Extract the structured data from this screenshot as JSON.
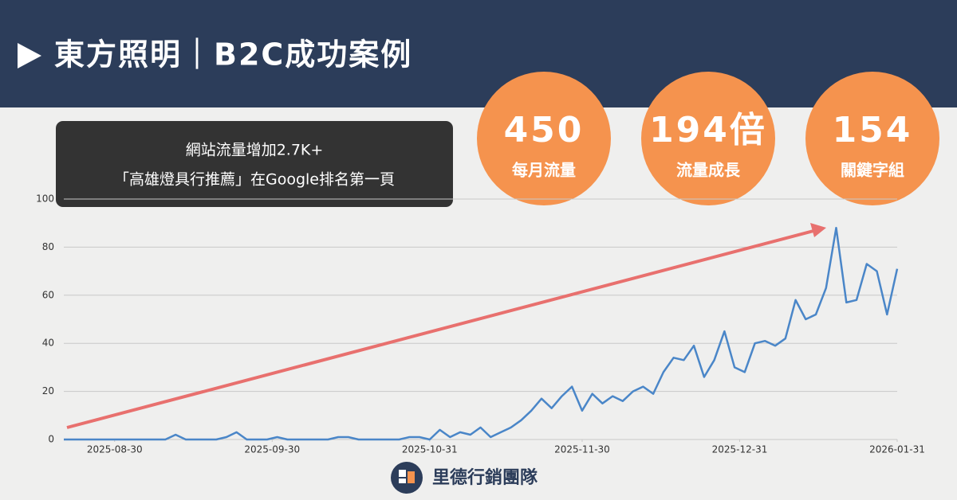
{
  "header": {
    "title": "東方照明｜B2C成功案例"
  },
  "callout": {
    "lines": [
      "網站流量增加2.7K+",
      "「高雄燈具行推薦」在Google排名第一頁"
    ]
  },
  "stats": [
    {
      "value": "450",
      "label": "每月流量"
    },
    {
      "value": "194倍",
      "label": "流量成長"
    },
    {
      "value": "154",
      "label": "關鍵字組"
    }
  ],
  "footer": {
    "brand": "里德行銷團隊"
  },
  "chart_data": {
    "type": "line",
    "color": "#4a86c8",
    "grid": true,
    "x": [
      "2025-08-20",
      "2025-08-22",
      "2025-08-24",
      "2025-08-26",
      "2025-08-28",
      "2025-08-30",
      "2025-09-01",
      "2025-09-03",
      "2025-09-05",
      "2025-09-07",
      "2025-09-09",
      "2025-09-11",
      "2025-09-13",
      "2025-09-15",
      "2025-09-17",
      "2025-09-19",
      "2025-09-21",
      "2025-09-23",
      "2025-09-25",
      "2025-09-27",
      "2025-09-29",
      "2025-10-01",
      "2025-10-03",
      "2025-10-05",
      "2025-10-07",
      "2025-10-09",
      "2025-10-11",
      "2025-10-13",
      "2025-10-15",
      "2025-10-17",
      "2025-10-19",
      "2025-10-21",
      "2025-10-23",
      "2025-10-25",
      "2025-10-27",
      "2025-10-29",
      "2025-10-31",
      "2025-11-02",
      "2025-11-04",
      "2025-11-06",
      "2025-11-08",
      "2025-11-10",
      "2025-11-12",
      "2025-11-14",
      "2025-11-16",
      "2025-11-18",
      "2025-11-20",
      "2025-11-22",
      "2025-11-24",
      "2025-11-26",
      "2025-11-28",
      "2025-11-30",
      "2025-12-02",
      "2025-12-04",
      "2025-12-06",
      "2025-12-08",
      "2025-12-10",
      "2025-12-12",
      "2025-12-14",
      "2025-12-16",
      "2025-12-18",
      "2025-12-20",
      "2025-12-22",
      "2025-12-24",
      "2025-12-26",
      "2025-12-28",
      "2025-12-30",
      "2026-01-01",
      "2026-01-03",
      "2026-01-05",
      "2026-01-07",
      "2026-01-09",
      "2026-01-11",
      "2026-01-13",
      "2026-01-15",
      "2026-01-17",
      "2026-01-19",
      "2026-01-21",
      "2026-01-23",
      "2026-01-25",
      "2026-01-27",
      "2026-01-29",
      "2026-01-31"
    ],
    "values": [
      0,
      0,
      0,
      0,
      0,
      0,
      0,
      0,
      0,
      0,
      0,
      2,
      0,
      0,
      0,
      0,
      1,
      3,
      0,
      0,
      0,
      1,
      0,
      0,
      0,
      0,
      0,
      1,
      1,
      0,
      0,
      0,
      0,
      0,
      1,
      1,
      0,
      4,
      1,
      3,
      2,
      5,
      1,
      3,
      5,
      8,
      12,
      17,
      13,
      18,
      22,
      12,
      19,
      15,
      18,
      16,
      20,
      22,
      19,
      28,
      34,
      33,
      39,
      26,
      33,
      45,
      30,
      28,
      40,
      41,
      39,
      42,
      58,
      50,
      52,
      63,
      88,
      57,
      58,
      73,
      70,
      52,
      71
    ],
    "xlim": [
      "2025-08-20",
      "2026-01-31"
    ],
    "xticks": [
      "2025-08-30",
      "2025-09-30",
      "2025-10-31",
      "2025-11-30",
      "2025-12-31",
      "2026-01-31"
    ],
    "ylim": [
      0,
      100
    ],
    "yticks": [
      0,
      20,
      40,
      60,
      80,
      100
    ]
  }
}
